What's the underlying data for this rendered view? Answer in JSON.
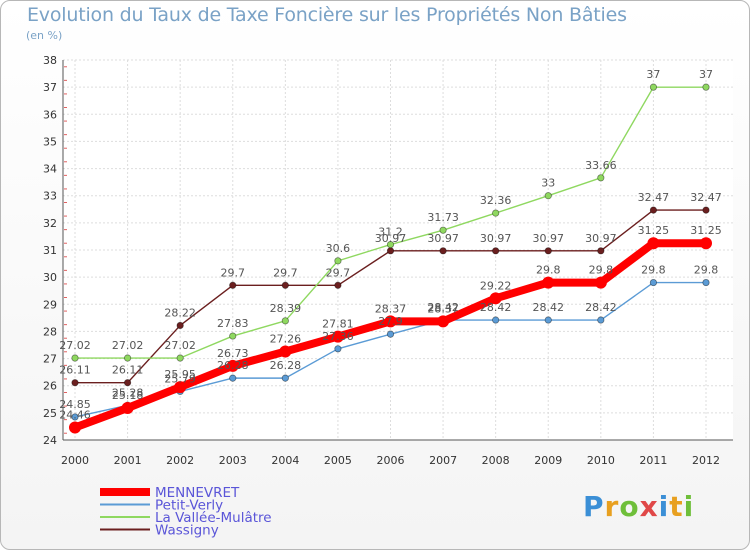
{
  "title": "Evolution du Taux de Taxe Foncière sur les Propriétés Non Bâties",
  "subtitle": "(en %)",
  "logo": {
    "letters": [
      "P",
      "r",
      "o",
      "x",
      "i",
      "t",
      "i"
    ],
    "colors": [
      "#3b8fd6",
      "#e8a020",
      "#6fbf3a",
      "#e04848",
      "#3b8fd6",
      "#e8a020",
      "#6fbf3a"
    ]
  },
  "chart_data": {
    "type": "line",
    "x": [
      "2000",
      "2001",
      "2002",
      "2003",
      "2004",
      "2005",
      "2006",
      "2007",
      "2008",
      "2009",
      "2010",
      "2011",
      "2012"
    ],
    "ylim": [
      24,
      38
    ],
    "yticks": [
      24,
      25,
      26,
      27,
      28,
      29,
      30,
      31,
      32,
      33,
      34,
      35,
      36,
      37,
      38
    ],
    "grid": true,
    "legend_position": "bottom-left",
    "series": [
      {
        "name": "Wassigny",
        "color": "#6b1f1f",
        "values": [
          26.11,
          26.11,
          28.22,
          29.7,
          29.7,
          29.7,
          30.97,
          30.97,
          30.97,
          30.97,
          30.97,
          32.47,
          32.47
        ],
        "labels": [
          "26.11",
          "26.11",
          "28.22",
          "29.7",
          "29.7",
          "29.7",
          "30.97",
          "30.97",
          "30.97",
          "30.97",
          "30.97",
          "32.47",
          "32.47"
        ]
      },
      {
        "name": "La Vallée-Mulâtre",
        "color": "#8fd860",
        "values": [
          27.02,
          27.02,
          27.02,
          27.83,
          28.39,
          30.6,
          31.2,
          31.73,
          32.36,
          33,
          33.66,
          37,
          37
        ],
        "labels": [
          "27.02",
          "27.02",
          "27.02",
          "27.83",
          "28.39",
          "30.6",
          "31.2",
          "31.73",
          "32.36",
          "33",
          "33.66",
          "37",
          "37"
        ]
      },
      {
        "name": "Petit-Verly",
        "color": "#5b9bd5",
        "values": [
          24.85,
          25.28,
          25.79,
          26.28,
          26.28,
          27.36,
          27.9,
          28.42,
          28.42,
          28.42,
          28.42,
          29.8,
          29.8
        ],
        "labels": [
          "24.85",
          "25.28",
          "25.79",
          "26.28",
          "26.28",
          "27.36",
          "27.9",
          "28.42",
          "28.42",
          "28.42",
          "28.42",
          "29.8",
          "29.8"
        ]
      },
      {
        "name": "MENNEVRET",
        "color": "#ff0000",
        "values": [
          24.46,
          25.18,
          25.95,
          26.73,
          27.26,
          27.81,
          28.37,
          28.37,
          29.22,
          29.8,
          29.8,
          31.25,
          31.25
        ],
        "labels": [
          "24.46",
          "25.18",
          "25.95",
          "26.73",
          "27.26",
          "27.81",
          "28.37",
          "28.37",
          "29.22",
          "29.8",
          "29.8",
          "31.25",
          "31.25"
        ]
      }
    ],
    "legend": [
      {
        "name": "MENNEVRET",
        "color": "#ff0000"
      },
      {
        "name": "Petit-Verly",
        "color": "#5b9bd5"
      },
      {
        "name": "La Vallée-Mulâtre",
        "color": "#8fd860"
      },
      {
        "name": "Wassigny",
        "color": "#6b1f1f"
      }
    ]
  }
}
